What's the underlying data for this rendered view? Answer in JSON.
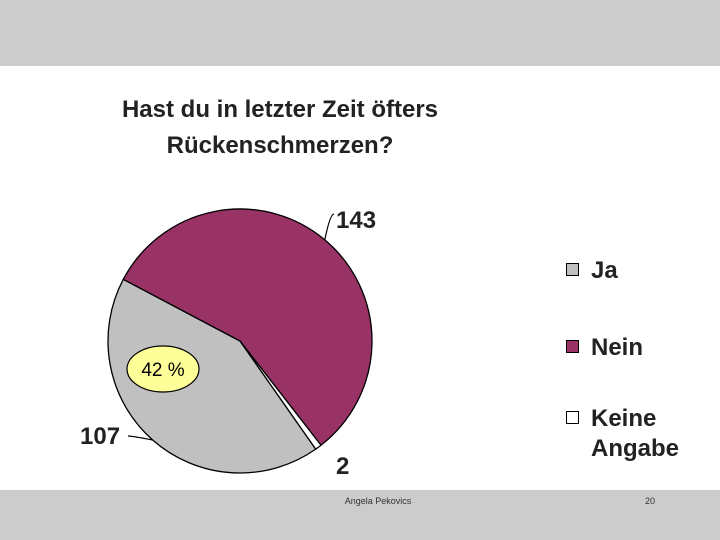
{
  "slide": {
    "author": "Angela Pekovics",
    "page_number": "20"
  },
  "chart_data": {
    "type": "pie",
    "title": "Hast du in letzter Zeit öfters Rückenschmerzen?",
    "title_lines": [
      "Hast du in letzter Zeit öfters",
      "Rückenschmerzen?"
    ],
    "categories": [
      "Ja",
      "Nein",
      "Keine Angabe"
    ],
    "values": [
      107,
      143,
      2
    ],
    "colors": [
      "#c0c0c0",
      "#993366",
      "#ffffff"
    ],
    "data_labels": [
      "107",
      "143",
      "2"
    ],
    "callout": "42 %",
    "callout_color": "#ffff99",
    "legend": {
      "position": "right",
      "entries": [
        "Ja",
        "Nein",
        "Keine\nAngabe"
      ]
    }
  }
}
